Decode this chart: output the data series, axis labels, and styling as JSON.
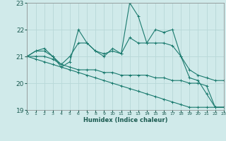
{
  "xlabel": "Humidex (Indice chaleur)",
  "xlim": [
    0,
    23
  ],
  "ylim": [
    19,
    23
  ],
  "yticks": [
    19,
    20,
    21,
    22,
    23
  ],
  "xticks": [
    0,
    1,
    2,
    3,
    4,
    5,
    6,
    7,
    8,
    9,
    10,
    11,
    12,
    13,
    14,
    15,
    16,
    17,
    18,
    19,
    20,
    21,
    22,
    23
  ],
  "background_color": "#d0eaea",
  "grid_color": "#b8d8d8",
  "line_color": "#1a7a6e",
  "lines": [
    {
      "x": [
        0,
        1,
        2,
        3,
        4,
        5,
        6,
        7,
        8,
        9,
        10,
        11,
        12,
        13,
        14,
        15,
        16,
        17,
        18,
        19,
        20,
        21,
        22,
        23
      ],
      "y": [
        21.0,
        21.2,
        21.3,
        21.0,
        20.6,
        20.8,
        22.0,
        21.5,
        21.2,
        21.0,
        21.3,
        21.1,
        23.0,
        22.5,
        21.5,
        22.0,
        21.9,
        22.0,
        21.0,
        20.2,
        20.1,
        19.6,
        19.1,
        19.1
      ]
    },
    {
      "x": [
        0,
        1,
        2,
        3,
        4,
        5,
        6,
        7,
        8,
        9,
        10,
        11,
        12,
        13,
        14,
        15,
        16,
        17,
        18,
        19,
        20,
        21,
        22,
        23
      ],
      "y": [
        21.0,
        21.2,
        21.2,
        21.0,
        20.7,
        21.0,
        21.5,
        21.5,
        21.2,
        21.1,
        21.2,
        21.1,
        21.7,
        21.5,
        21.5,
        21.5,
        21.5,
        21.4,
        21.0,
        20.5,
        20.3,
        20.2,
        20.1,
        20.1
      ]
    },
    {
      "x": [
        0,
        1,
        2,
        3,
        4,
        5,
        6,
        7,
        8,
        9,
        10,
        11,
        12,
        13,
        14,
        15,
        16,
        17,
        18,
        19,
        20,
        21,
        22,
        23
      ],
      "y": [
        21.0,
        21.0,
        21.0,
        20.9,
        20.7,
        20.6,
        20.5,
        20.5,
        20.5,
        20.4,
        20.4,
        20.3,
        20.3,
        20.3,
        20.3,
        20.2,
        20.2,
        20.1,
        20.1,
        20.0,
        20.0,
        19.9,
        19.1,
        19.1
      ]
    },
    {
      "x": [
        0,
        1,
        2,
        3,
        4,
        5,
        6,
        7,
        8,
        9,
        10,
        11,
        12,
        13,
        14,
        15,
        16,
        17,
        18,
        19,
        20,
        21,
        22,
        23
      ],
      "y": [
        21.0,
        20.9,
        20.8,
        20.7,
        20.6,
        20.5,
        20.4,
        20.3,
        20.2,
        20.1,
        20.0,
        19.9,
        19.8,
        19.7,
        19.6,
        19.5,
        19.4,
        19.3,
        19.2,
        19.1,
        19.1,
        19.1,
        19.1,
        19.1
      ]
    }
  ]
}
